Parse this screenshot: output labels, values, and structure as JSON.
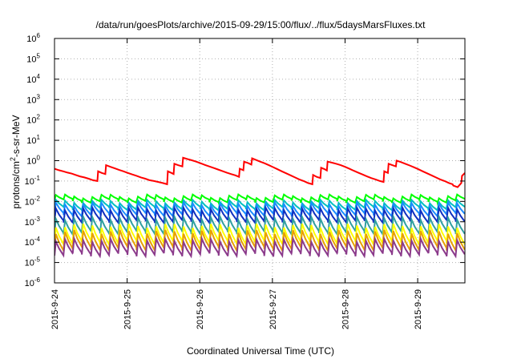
{
  "chart_data": {
    "type": "line",
    "title": "/data/run/goesPlots/archive/2015-09-29/15:00/flux/../flux/5daysMarsFluxes.txt",
    "xlabel": "Coordinated Universal Time (UTC)",
    "ylabel_parts": {
      "base": "protons/cm",
      "sup": "2",
      "rest": "-s-sr-MeV"
    },
    "x_ticks": [
      "2015-9-24",
      "2015-9-25",
      "2015-9-26",
      "2015-9-27",
      "2015-9-28",
      "2015-9-29"
    ],
    "x_range_days": [
      0,
      5.65
    ],
    "y_scale": "log",
    "y_ticks": [
      {
        "base": "10",
        "exp": "-6",
        "v": -6
      },
      {
        "base": "10",
        "exp": "-5",
        "v": -5
      },
      {
        "base": "10",
        "exp": "-4",
        "v": -4
      },
      {
        "base": "10",
        "exp": "-3",
        "v": -3
      },
      {
        "base": "10",
        "exp": "-2",
        "v": -2
      },
      {
        "base": "10",
        "exp": "-1",
        "v": -1
      },
      {
        "base": "10",
        "exp": "0",
        "v": 0
      },
      {
        "base": "10",
        "exp": "1",
        "v": 1
      },
      {
        "base": "10",
        "exp": "2",
        "v": 2
      },
      {
        "base": "10",
        "exp": "3",
        "v": 3
      },
      {
        "base": "10",
        "exp": "4",
        "v": 4
      },
      {
        "base": "10",
        "exp": "5",
        "v": 5
      },
      {
        "base": "10",
        "exp": "6",
        "v": 6
      }
    ],
    "ylim": [
      1e-06,
      1000000.0
    ],
    "grid": true,
    "series": [
      {
        "color": "#ff0000",
        "x": [
          0.0,
          0.06,
          0.12,
          0.18,
          0.24,
          0.29,
          0.35,
          0.41,
          0.47,
          0.53,
          0.59,
          0.6,
          0.65,
          0.7,
          0.71,
          0.77,
          0.83,
          0.89,
          0.95,
          1.01,
          1.07,
          1.13,
          1.19,
          1.25,
          1.31,
          1.37,
          1.43,
          1.49,
          1.55,
          1.56,
          1.61,
          1.64,
          1.65,
          1.7,
          1.76,
          1.77,
          1.83,
          1.89,
          1.95,
          2.01,
          2.07,
          2.13,
          2.19,
          2.25,
          2.31,
          2.37,
          2.43,
          2.49,
          2.54,
          2.55,
          2.6,
          2.61,
          2.67,
          2.71,
          2.72,
          2.77,
          2.83,
          2.89,
          2.95,
          3.01,
          3.07,
          3.13,
          3.19,
          3.25,
          3.31,
          3.37,
          3.43,
          3.49,
          3.55,
          3.56,
          3.61,
          3.66,
          3.67,
          3.72,
          3.75,
          3.76,
          3.82,
          3.88,
          3.94,
          4.0,
          4.06,
          4.12,
          4.18,
          4.24,
          4.3,
          4.36,
          4.42,
          4.48,
          4.53,
          4.54,
          4.59,
          4.6,
          4.65,
          4.7,
          4.71,
          4.77,
          4.83,
          4.89,
          4.95,
          5.01,
          5.07,
          5.13,
          5.19,
          5.25,
          5.31,
          5.37,
          5.43,
          5.48,
          5.49,
          5.55,
          5.6,
          5.61,
          5.65
        ],
        "y": [
          0.4,
          0.34,
          0.3,
          0.26,
          0.23,
          0.2,
          0.17,
          0.15,
          0.13,
          0.11,
          0.1,
          0.3,
          0.25,
          0.22,
          0.6,
          0.5,
          0.42,
          0.35,
          0.3,
          0.25,
          0.21,
          0.18,
          0.15,
          0.13,
          0.11,
          0.1,
          0.09,
          0.08,
          0.07,
          0.3,
          0.25,
          0.22,
          0.7,
          0.6,
          0.52,
          1.4,
          1.2,
          1.05,
          0.9,
          0.75,
          0.62,
          0.52,
          0.44,
          0.37,
          0.31,
          0.26,
          0.22,
          0.19,
          0.16,
          0.4,
          0.34,
          0.9,
          0.75,
          0.64,
          1.3,
          1.1,
          0.9,
          0.75,
          0.6,
          0.48,
          0.38,
          0.3,
          0.24,
          0.19,
          0.15,
          0.12,
          0.1,
          0.08,
          0.07,
          0.2,
          0.16,
          0.14,
          0.45,
          0.38,
          0.33,
          0.9,
          0.8,
          0.7,
          0.6,
          0.5,
          0.4,
          0.32,
          0.26,
          0.21,
          0.17,
          0.14,
          0.12,
          0.1,
          0.09,
          0.3,
          0.25,
          0.7,
          0.6,
          0.52,
          1.0,
          0.85,
          0.7,
          0.58,
          0.47,
          0.38,
          0.3,
          0.24,
          0.19,
          0.15,
          0.12,
          0.1,
          0.08,
          0.07,
          0.06,
          0.05,
          0.08,
          0.18,
          0.25
        ]
      },
      {
        "color": "#00ff00",
        "peak_min": 0.014,
        "peak_max": 0.022,
        "trough_ratio": 0.6,
        "cycles": 45
      },
      {
        "color": "#00c0c0",
        "peak_min": 0.008,
        "peak_max": 0.012,
        "trough_ratio": 0.45,
        "cycles": 45
      },
      {
        "color": "#1a8cff",
        "peak_min": 0.006,
        "peak_max": 0.009,
        "trough_ratio": 0.3,
        "cycles": 45
      },
      {
        "color": "#1030c0",
        "peak_min": 0.0035,
        "peak_max": 0.005,
        "trough_ratio": 0.25,
        "cycles": 45
      },
      {
        "color": "#30a0a0",
        "peak_min": 0.0012,
        "peak_max": 0.0018,
        "trough_ratio": 0.2,
        "cycles": 45
      },
      {
        "color": "#ffff00",
        "peak_min": 0.0005,
        "peak_max": 0.0008,
        "trough_ratio": 0.15,
        "cycles": 45
      },
      {
        "color": "#e8a000",
        "peak_min": 0.00025,
        "peak_max": 0.0004,
        "trough_ratio": 0.15,
        "cycles": 45
      },
      {
        "color": "#8b3a8b",
        "peak_min": 0.0001,
        "peak_max": 0.00015,
        "trough_ratio": 0.2,
        "cycles": 45
      }
    ]
  }
}
